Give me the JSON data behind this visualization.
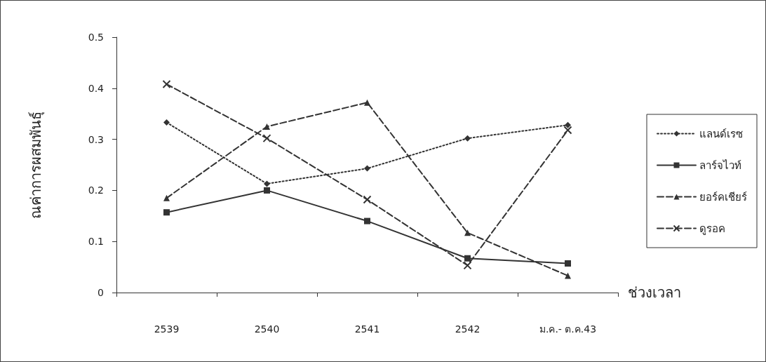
{
  "chart_data": {
    "type": "line",
    "xlabel": "ช่วงเวลา",
    "ylabel": "ณค่าการผสมพันธุ์",
    "categories": [
      "2539",
      "2540",
      "2541",
      "2542",
      "ม.ค.- ต.ค.43"
    ],
    "series": [
      {
        "name": "แลนด์เรซ",
        "color": "#333333",
        "marker": "diamond",
        "line_style": "dotted",
        "values": [
          0.333,
          0.213,
          0.243,
          0.302,
          0.328
        ]
      },
      {
        "name": "ลาร์จไวท์",
        "color": "#333333",
        "marker": "square",
        "line_style": "solid",
        "values": [
          0.157,
          0.2,
          0.14,
          0.067,
          0.057
        ]
      },
      {
        "name": "ยอร์คเชียร์",
        "color": "#333333",
        "marker": "triangle",
        "line_style": "dashed",
        "values": [
          0.185,
          0.325,
          0.372,
          0.117,
          0.033
        ]
      },
      {
        "name": "ดูรอค",
        "color": "#333333",
        "marker": "cross",
        "line_style": "dashed",
        "values": [
          0.408,
          0.302,
          0.182,
          0.053,
          0.318
        ]
      }
    ],
    "ylim": [
      0,
      0.5
    ],
    "yticks": [
      0,
      0.1,
      0.2,
      0.3,
      0.4,
      0.5
    ],
    "grid": false,
    "legend": "right"
  }
}
